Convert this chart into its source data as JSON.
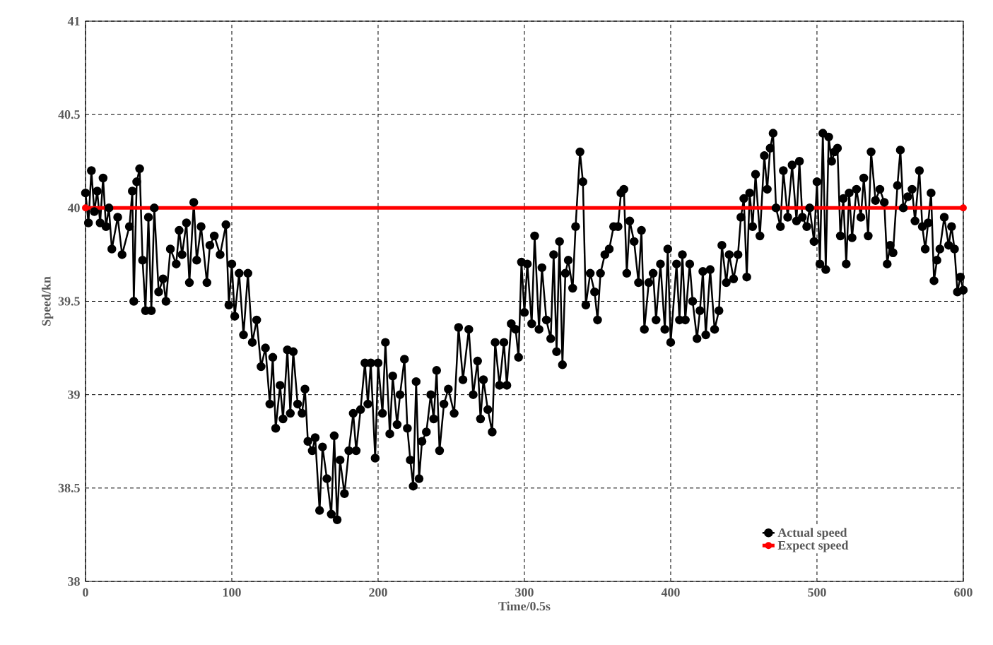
{
  "chart_data": {
    "type": "line",
    "xlabel": "Time/0.5s",
    "ylabel": "Speed/kn",
    "xlim": [
      0,
      600
    ],
    "ylim": [
      38,
      41
    ],
    "xticks": [
      0,
      100,
      200,
      300,
      400,
      500,
      600
    ],
    "yticks": [
      38,
      38.5,
      39,
      39.5,
      40,
      40.5,
      41
    ],
    "grid": true,
    "legend": "bottom right",
    "marker": "circle",
    "series": [
      {
        "name": "Actual speed",
        "color": "#000000",
        "x": [
          0,
          2,
          4,
          6,
          8,
          10,
          12,
          14,
          16,
          18,
          22,
          25,
          30,
          32,
          33,
          35,
          37,
          39,
          41,
          43,
          45,
          47,
          50,
          53,
          55,
          58,
          62,
          64,
          66,
          69,
          71,
          74,
          76,
          79,
          83,
          85,
          88,
          92,
          96,
          98,
          100,
          102,
          105,
          108,
          111,
          114,
          117,
          120,
          123,
          126,
          128,
          130,
          133,
          135,
          138,
          140,
          142,
          145,
          148,
          150,
          152,
          155,
          157,
          160,
          162,
          165,
          168,
          170,
          172,
          174,
          177,
          180,
          183,
          185,
          188,
          191,
          193,
          195,
          198,
          200,
          203,
          205,
          208,
          210,
          213,
          215,
          218,
          220,
          222,
          224,
          226,
          228,
          230,
          233,
          236,
          238,
          240,
          242,
          245,
          248,
          252,
          255,
          258,
          262,
          265,
          268,
          270,
          272,
          275,
          278,
          280,
          283,
          286,
          288,
          291,
          294,
          296,
          298,
          300,
          302,
          305,
          307,
          310,
          312,
          315,
          318,
          320,
          322,
          324,
          326,
          328,
          330,
          333,
          335,
          338,
          340,
          342,
          345,
          348,
          350,
          352,
          355,
          358,
          361,
          364,
          366,
          368,
          370,
          372,
          375,
          378,
          380,
          382,
          385,
          388,
          390,
          393,
          396,
          398,
          400,
          404,
          406,
          408,
          410,
          413,
          415,
          418,
          420,
          422,
          424,
          427,
          430,
          433,
          435,
          438,
          440,
          443,
          446,
          448,
          450,
          452,
          454,
          456,
          458,
          461,
          464,
          466,
          468,
          470,
          472,
          475,
          477,
          480,
          483,
          486,
          488,
          490,
          493,
          495,
          498,
          500,
          502,
          504,
          506,
          508,
          510,
          512,
          514,
          516,
          518,
          520,
          522,
          524,
          527,
          530,
          532,
          535,
          537,
          540,
          543,
          546,
          548,
          550,
          552,
          555,
          557,
          559,
          562,
          565,
          567,
          570,
          572,
          574,
          576,
          578,
          580,
          582,
          584,
          587,
          590,
          592,
          594,
          596,
          598,
          600
        ],
        "values": [
          40.08,
          39.92,
          40.2,
          39.98,
          40.09,
          39.92,
          40.16,
          39.9,
          40.0,
          39.78,
          39.95,
          39.75,
          39.9,
          40.09,
          39.5,
          40.14,
          40.21,
          39.72,
          39.45,
          39.95,
          39.45,
          40.0,
          39.55,
          39.62,
          39.5,
          39.78,
          39.7,
          39.88,
          39.75,
          39.92,
          39.6,
          40.03,
          39.72,
          39.9,
          39.6,
          39.8,
          39.85,
          39.75,
          39.91,
          39.48,
          39.7,
          39.42,
          39.65,
          39.32,
          39.65,
          39.28,
          39.4,
          39.15,
          39.25,
          38.95,
          39.2,
          38.82,
          39.05,
          38.87,
          39.24,
          38.9,
          39.23,
          38.95,
          38.9,
          39.03,
          38.75,
          38.7,
          38.77,
          38.38,
          38.72,
          38.55,
          38.36,
          38.78,
          38.33,
          38.65,
          38.47,
          38.7,
          38.9,
          38.7,
          38.92,
          39.17,
          38.95,
          39.17,
          38.66,
          39.17,
          38.9,
          39.28,
          38.79,
          39.1,
          38.84,
          39.0,
          39.19,
          38.82,
          38.65,
          38.51,
          39.07,
          38.55,
          38.75,
          38.8,
          39.0,
          38.87,
          39.13,
          38.7,
          38.95,
          39.03,
          38.9,
          39.36,
          39.08,
          39.35,
          39.0,
          39.18,
          38.87,
          39.08,
          38.92,
          38.8,
          39.28,
          39.05,
          39.28,
          39.05,
          39.38,
          39.35,
          39.2,
          39.71,
          39.44,
          39.7,
          39.38,
          39.85,
          39.35,
          39.68,
          39.4,
          39.3,
          39.75,
          39.23,
          39.82,
          39.16,
          39.65,
          39.72,
          39.57,
          39.9,
          40.3,
          40.14,
          39.48,
          39.65,
          39.55,
          39.4,
          39.65,
          39.75,
          39.78,
          39.9,
          39.9,
          40.08,
          40.1,
          39.65,
          39.93,
          39.82,
          39.6,
          39.88,
          39.35,
          39.6,
          39.65,
          39.4,
          39.7,
          39.35,
          39.78,
          39.28,
          39.7,
          39.4,
          39.75,
          39.4,
          39.7,
          39.5,
          39.3,
          39.45,
          39.66,
          39.32,
          39.67,
          39.35,
          39.45,
          39.8,
          39.6,
          39.75,
          39.62,
          39.75,
          39.95,
          40.05,
          39.63,
          40.08,
          39.9,
          40.18,
          39.85,
          40.28,
          40.1,
          40.32,
          40.4,
          40.0,
          39.9,
          40.2,
          39.95,
          40.23,
          39.93,
          40.25,
          39.95,
          39.9,
          40.0,
          39.82,
          40.14,
          39.7,
          40.4,
          39.67,
          40.38,
          40.25,
          40.3,
          40.32,
          39.85,
          40.05,
          39.7,
          40.08,
          39.84,
          40.1,
          39.95,
          40.16,
          39.85,
          40.3,
          40.04,
          40.1,
          40.03,
          39.7,
          39.8,
          39.76,
          40.12,
          40.31,
          40.0,
          40.06,
          40.1,
          39.93,
          40.2,
          39.9,
          39.78,
          39.92,
          40.08,
          39.61,
          39.72,
          39.78,
          39.95,
          39.8,
          39.9,
          39.78,
          39.55,
          39.63,
          39.56
        ]
      },
      {
        "name": "Expect speed",
        "color": "#ff0000",
        "x": [
          0,
          600
        ],
        "values": [
          40,
          40
        ]
      }
    ]
  }
}
